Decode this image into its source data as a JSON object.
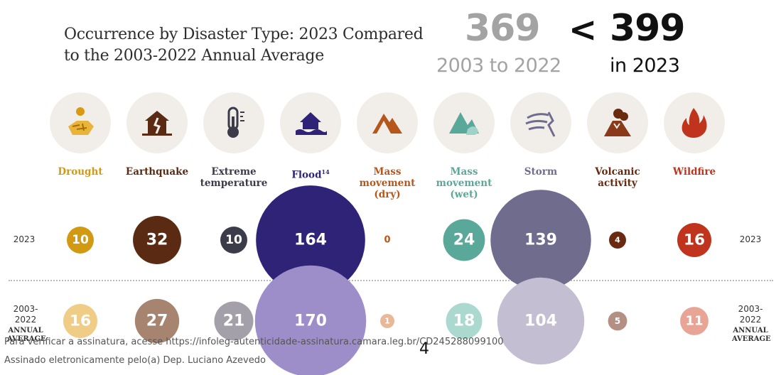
{
  "title_line1": "Occurrence by Disaster Type: 2023 Compared",
  "title_line2": "to the 2003-2022 Annual Average",
  "comparison": {
    "avg_total": "369",
    "avg_label": "2003 to 2022",
    "symbol": "<",
    "current_total": "399",
    "current_label": "in 2023"
  },
  "row_labels": {
    "row_2023_left": "2023",
    "row_2023_right": "2023",
    "row_avg_left_line1": "2003-",
    "row_avg_left_line2": "2022",
    "row_avg_left_line3": "ANNUAL",
    "row_avg_left_line4": "AVERAGE",
    "row_avg_right_line1": "2003-",
    "row_avg_right_line2": "2022",
    "row_avg_right_line3": "ANNUAL",
    "row_avg_right_line4": "AVERAGE"
  },
  "chart_data": {
    "type": "bubble",
    "categories": [
      {
        "name": "Drought",
        "lines": [
          "Drought"
        ],
        "sup": "",
        "color": "#d19a12",
        "icon": "drought-icon"
      },
      {
        "name": "Earthquake",
        "lines": [
          "Earthquake"
        ],
        "sup": "",
        "color": "#5a2a12",
        "icon": "earthquake-icon"
      },
      {
        "name": "Extreme temperature",
        "lines": [
          "Extreme",
          "temperature"
        ],
        "sup": "",
        "color": "#3b3b4a",
        "icon": "thermometer-icon"
      },
      {
        "name": "Flood",
        "lines": [
          "Flood"
        ],
        "sup": "14",
        "color": "#2f2378",
        "icon": "flood-icon"
      },
      {
        "name": "Mass movement (dry)",
        "lines": [
          "Mass",
          "movement",
          "(dry)"
        ],
        "sup": "",
        "color": "#b5571a",
        "icon": "mountain-dry-icon"
      },
      {
        "name": "Mass movement (wet)",
        "lines": [
          "Mass",
          "movement",
          "(wet)"
        ],
        "sup": "",
        "color": "#5aa89a",
        "icon": "mountain-wet-icon"
      },
      {
        "name": "Storm",
        "lines": [
          "Storm"
        ],
        "sup": "",
        "color": "#6f6c8e",
        "icon": "storm-icon"
      },
      {
        "name": "Volcanic activity",
        "lines": [
          "Volcanic",
          "activity"
        ],
        "sup": "",
        "color": "#6a2a10",
        "icon": "volcano-icon"
      },
      {
        "name": "Wildfire",
        "lines": [
          "Wildfire"
        ],
        "sup": "",
        "color": "#c0341e",
        "icon": "fire-icon"
      }
    ],
    "series": [
      {
        "name": "2023",
        "values": [
          10,
          32,
          10,
          164,
          0,
          24,
          139,
          4,
          16
        ],
        "colors": [
          "#d19a12",
          "#5a2a12",
          "#3b3b4a",
          "#2f2378",
          "#b5571a",
          "#5aa89a",
          "#6f6c8e",
          "#6a2a10",
          "#c0341e"
        ]
      },
      {
        "name": "2003-2022 ANNUAL AVERAGE",
        "values": [
          16,
          27,
          21,
          170,
          1,
          18,
          104,
          5,
          11
        ],
        "colors": [
          "#f0cd86",
          "#a68470",
          "#a3a0aa",
          "#9d8ec9",
          "#e8b898",
          "#acd9cf",
          "#c3bed2",
          "#b49084",
          "#e8a596"
        ]
      }
    ]
  },
  "footer": {
    "line1": "Para verificar a assinatura, acesse https://infoleg-autenticidade-assinatura.camara.leg.br/CD245288099100",
    "line2": "Assinado eletronicamente pelo(a) Dep. Luciano Azevedo",
    "page_number": "4"
  }
}
